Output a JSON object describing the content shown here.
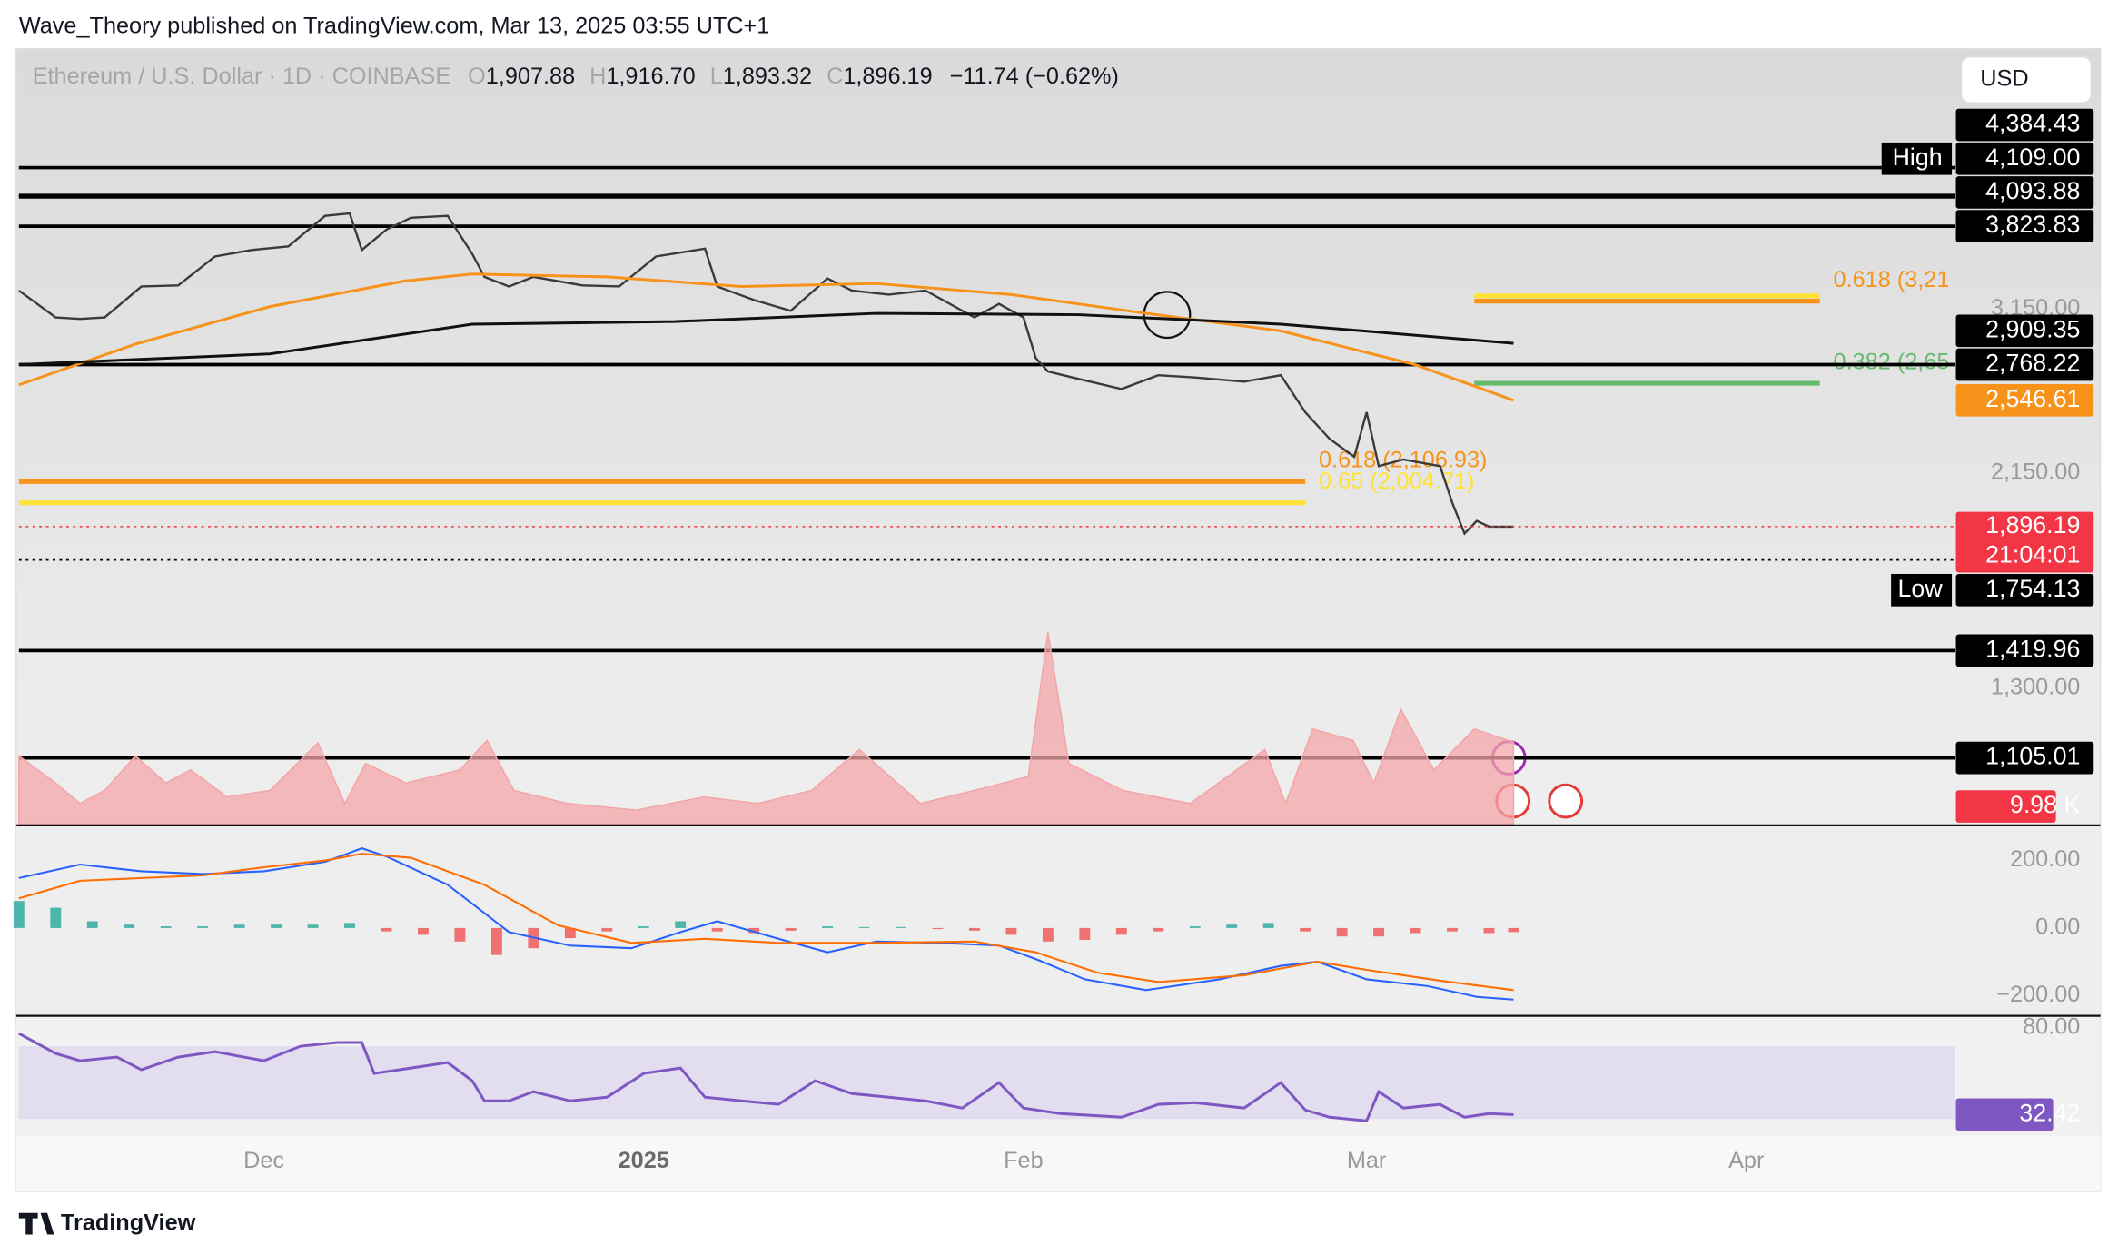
{
  "header": {
    "byline": "Wave_Theory published on TradingView.com, Mar 13, 2025 03:55 UTC+1",
    "symbol": "Ethereum / U.S. Dollar · 1D · COINBASE",
    "ohlc": [
      {
        "key": "O",
        "value": "1,907.88"
      },
      {
        "key": "H",
        "value": "1,916.70"
      },
      {
        "key": "L",
        "value": "1,893.32"
      },
      {
        "key": "C",
        "value": "1,896.19"
      }
    ],
    "change": "−11.74 (−0.62%)",
    "currency": "USD"
  },
  "chart_data": [
    {
      "type": "line",
      "log_scale": true,
      "xlim": [
        -20,
        138
      ],
      "xticks": [
        {
          "value": 0,
          "label": "Dec"
        },
        {
          "value": 31,
          "label": "2025"
        },
        {
          "value": 62,
          "label": "Feb"
        },
        {
          "value": 90,
          "label": "Mar"
        },
        {
          "value": 121,
          "label": "Apr"
        }
      ],
      "ylim": [
        947,
        5750
      ],
      "yticks": [
        {
          "value": 3150,
          "label": "3,150.00"
        },
        {
          "value": 2150,
          "label": "2,150.00"
        },
        {
          "value": 1300,
          "label": "1,300.00"
        }
      ],
      "series": [
        {
          "color": "#3a3a3a",
          "x": [
            -20,
            -17,
            -15,
            -13,
            -10,
            -7,
            -4,
            -1,
            2,
            5,
            7,
            8,
            10,
            12,
            15,
            17,
            18,
            20,
            22,
            26,
            29,
            32,
            36,
            37,
            40,
            43,
            46,
            48,
            51,
            54,
            58,
            60,
            62,
            63,
            64,
            66,
            70,
            73,
            76,
            80,
            83,
            85,
            87,
            89,
            90,
            91,
            93,
            96,
            97,
            98,
            99,
            100,
            102
          ],
          "values": [
            3291,
            3090,
            3080,
            3090,
            3322,
            3330,
            3563,
            3617,
            3648,
            3917,
            3940,
            3617,
            3793,
            3900,
            3917,
            3584,
            3397,
            3322,
            3397,
            3330,
            3322,
            3563,
            3628,
            3322,
            3219,
            3139,
            3384,
            3291,
            3260,
            3291,
            3090,
            3189,
            3090,
            2811,
            2724,
            2686,
            2615,
            2700,
            2686,
            2660,
            2700,
            2477,
            2327,
            2232,
            2477,
            2184,
            2218,
            2184,
            2006,
            1866,
            1922,
            1896,
            1896.19
          ]
        },
        {
          "color": "#f7931a",
          "x": [
            -20,
            -10.5,
            0.5,
            11.5,
            17,
            28,
            39,
            50,
            61,
            72,
            83,
            94,
            102
          ],
          "values": [
            2640,
            2903,
            3169,
            3365,
            3420,
            3397,
            3322,
            3345,
            3260,
            3120,
            2995,
            2767,
            2546.61
          ]
        },
        {
          "color": "#111111",
          "x": [
            -20,
            0.5,
            17,
            33.5,
            50,
            66.5,
            83,
            102
          ],
          "values": [
            2768,
            2838,
            3042,
            3060,
            3120,
            3110,
            3042,
            2909.35
          ]
        }
      ],
      "levels": [
        {
          "value": 4384.43,
          "label": "4,384.43"
        },
        {
          "value": 4109,
          "label": "4,109.00",
          "tag": "High"
        },
        {
          "value": 4093.88,
          "label": "4,093.88"
        },
        {
          "value": 3823.83,
          "label": "3,823.83"
        },
        {
          "value": 2768.22,
          "label": "2,768.22"
        },
        {
          "value": 1754.13,
          "label": "1,754.13",
          "tag": "Low",
          "style": "dotted"
        },
        {
          "value": 1419.96,
          "label": "1,419.96"
        },
        {
          "value": 1105.01,
          "label": "1,105.01"
        }
      ],
      "markers": [
        {
          "value": 2909.35,
          "label": "2,909.35",
          "color": "#000000"
        },
        {
          "value": 2546.61,
          "label": "2,546.61",
          "color": "#f7931a"
        }
      ],
      "last": {
        "value": 1896.19,
        "label": "1,896.19",
        "countdown": "21:04:01",
        "color": "#f23645"
      },
      "fibs": [
        {
          "value": 3250,
          "x": [
            98.8,
            127
          ],
          "color": "#ffe234"
        },
        {
          "value": 3210,
          "x": [
            98.8,
            127
          ],
          "color": "#f7931a",
          "label": "0.618 (3,21"
        },
        {
          "value": 2650,
          "x": [
            98.8,
            127
          ],
          "color": "#66bb6a",
          "label": "0.382 (2,65"
        },
        {
          "value": 2106.93,
          "x": [
            -20,
            85
          ],
          "color": "#f7931a",
          "label": "0.618 (2,106.93)"
        },
        {
          "value": 2004.71,
          "x": [
            -20,
            85
          ],
          "color": "#ffe234",
          "label": "0.65 (2,004.71)"
        }
      ]
    },
    {
      "type": "area",
      "color": "#f3a5a8",
      "ylim": [
        0,
        28
      ],
      "x": [
        -20,
        -17,
        -15,
        -13,
        -10.5,
        -8,
        -6,
        -3,
        0.5,
        4.4,
        6.6,
        8.3,
        11.6,
        16,
        18.2,
        20.4,
        24.8,
        30.4,
        35.9,
        40.3,
        44.7,
        48.6,
        53.6,
        58,
        62.4,
        64,
        65.7,
        70.1,
        75.6,
        81.7,
        83.4,
        85.6,
        88.9,
        90.6,
        92.8,
        95.5,
        98.8,
        102
      ],
      "values": [
        8.3,
        5,
        2.5,
        4.1,
        8.3,
        5,
        6.6,
        3.3,
        4.1,
        9.9,
        2.5,
        7.4,
        5,
        6.6,
        10.2,
        4.1,
        2.5,
        1.7,
        3.3,
        2.5,
        4.1,
        9.1,
        2.5,
        4.1,
        5.8,
        23.4,
        7.4,
        4.1,
        2.5,
        9.1,
        2.5,
        11.6,
        10.2,
        5,
        14,
        6.6,
        11.6,
        9.98
      ],
      "tag": {
        "value": 9.98,
        "label": "9.98 K",
        "color": "#f23645"
      }
    },
    {
      "type": "macd",
      "ylim": [
        -260,
        288
      ],
      "yticks": [
        {
          "value": 200,
          "label": "200.00"
        },
        {
          "value": 0,
          "label": "0.00"
        },
        {
          "value": -200,
          "label": "−200.00"
        }
      ],
      "series": [
        {
          "color": "#2962ff",
          "x": [
            -20,
            -15,
            -10,
            -5,
            0,
            5,
            8,
            10,
            15,
            20,
            25,
            30,
            34,
            37,
            42,
            46,
            50,
            55,
            60,
            63,
            67,
            72,
            78,
            83,
            86,
            90,
            95,
            99,
            102
          ],
          "values": [
            148,
            188,
            168,
            160,
            168,
            196,
            236,
            212,
            128,
            -12,
            -52,
            -60,
            -12,
            20,
            -32,
            -72,
            -40,
            -44,
            -52,
            -92,
            -152,
            -184,
            -152,
            -112,
            -100,
            -152,
            -172,
            -204,
            -212
          ]
        },
        {
          "color": "#ff6d00",
          "x": [
            -20,
            -15,
            -10,
            -5,
            0,
            5,
            8,
            12,
            18,
            24,
            30,
            36,
            42,
            50,
            58,
            63,
            68,
            73,
            80,
            86,
            90,
            96,
            102
          ],
          "values": [
            88,
            140,
            148,
            156,
            180,
            200,
            220,
            208,
            128,
            8,
            -44,
            -32,
            -44,
            -44,
            -40,
            -72,
            -132,
            -160,
            -140,
            -100,
            -124,
            -156,
            -184
          ]
        }
      ],
      "histogram": {
        "up_color": "#26a69a",
        "down_color": "#ef5350",
        "x": [
          -20,
          -17,
          -14,
          -11,
          -8,
          -5,
          -2,
          1,
          4,
          7,
          10,
          13,
          16,
          19,
          22,
          25,
          28,
          31,
          34,
          37,
          40,
          43,
          46,
          49,
          52,
          55,
          58,
          61,
          64,
          67,
          70,
          73,
          76,
          79,
          82,
          85,
          88,
          91,
          94,
          97,
          100,
          102
        ],
        "values": [
          80,
          60,
          20,
          10,
          5,
          5,
          10,
          10,
          10,
          15,
          -10,
          -20,
          -40,
          -80,
          -60,
          -30,
          -10,
          5,
          20,
          -10,
          -15,
          -8,
          5,
          3,
          3,
          -3,
          -8,
          -20,
          -40,
          -35,
          -20,
          -10,
          5,
          10,
          15,
          -10,
          -25,
          -25,
          -15,
          -10,
          -15,
          -12
        ]
      }
    },
    {
      "type": "line",
      "ylim": [
        14,
        86.7
      ],
      "yticks": [
        {
          "value": 80,
          "label": "80.00"
        }
      ],
      "band": [
        30,
        70
      ],
      "series": [
        {
          "color": "#7e57c2",
          "x": [
            -20,
            -17,
            -15,
            -12,
            -10,
            -7,
            -4,
            0,
            3,
            6,
            8,
            9,
            12,
            15,
            17,
            18,
            20,
            22,
            25,
            28,
            31,
            34,
            36,
            39,
            42,
            45,
            48,
            51,
            54,
            57,
            60,
            62,
            65,
            70,
            73,
            76,
            80,
            83,
            85,
            87,
            90,
            91,
            93,
            96,
            98,
            100,
            102
          ],
          "values": [
            77,
            66,
            62,
            64,
            57,
            64,
            67,
            62,
            70,
            72,
            72,
            55,
            58,
            61,
            51,
            40,
            40,
            45,
            40,
            42,
            55,
            58,
            42,
            40,
            38,
            51,
            44,
            42,
            40,
            36,
            50,
            36,
            33,
            31,
            38,
            39,
            36,
            50,
            35,
            31,
            29,
            45,
            36,
            38,
            31,
            33,
            32.42
          ]
        }
      ],
      "tag": {
        "value": 32.42,
        "label": "32.42",
        "color": "#7e57c2"
      }
    }
  ],
  "footer": {
    "brand": "TradingView"
  }
}
